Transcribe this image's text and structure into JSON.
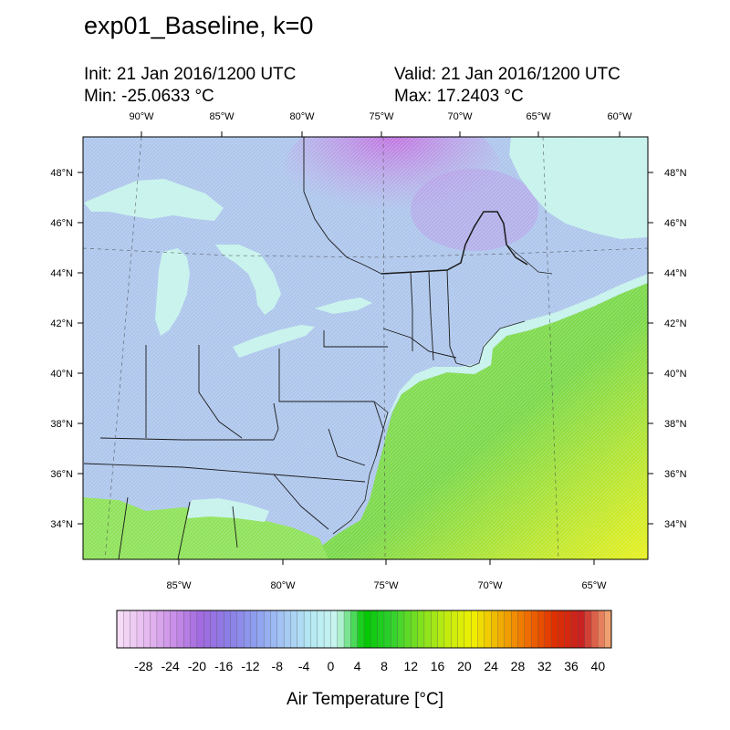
{
  "header": {
    "title": "exp01_Baseline, k=0",
    "init": "Init: 21 Jan 2016/1200 UTC",
    "valid": "Valid: 21 Jan 2016/1200 UTC",
    "min": "Min: -25.0633 °C",
    "max": "Max: 17.2403 °C"
  },
  "map": {
    "top_lon_labels": [
      "90°W",
      "85°W",
      "80°W",
      "75°W",
      "70°W",
      "65°W",
      "60°W"
    ],
    "bottom_lon_labels": [
      "85°W",
      "80°W",
      "75°W",
      "70°W",
      "65°W"
    ],
    "lat_labels": [
      "48°N",
      "46°N",
      "44°N",
      "42°N",
      "40°N",
      "38°N",
      "36°N",
      "34°N"
    ],
    "land_color": "#aec6ec",
    "cold_color": "#c89ae6",
    "water_color": "#c6f2ec",
    "warm_color": "#8fe25a",
    "hot_color": "#e8f01e",
    "border_color": "#000000"
  },
  "colorbar": {
    "title": "Air Temperature [°C]",
    "tick_labels": [
      "-28",
      "-24",
      "-20",
      "-16",
      "-12",
      "-8",
      "-4",
      "0",
      "4",
      "8",
      "12",
      "16",
      "20",
      "24",
      "28",
      "32",
      "36",
      "40"
    ],
    "range": [
      -32,
      42
    ],
    "colors": [
      "#f6dcf6",
      "#e6b9f0",
      "#c98ee8",
      "#a06ae0",
      "#8c7ee6",
      "#8f9ff0",
      "#a4c6f4",
      "#b5e8f4",
      "#c8f6ee",
      "#00c800",
      "#30d030",
      "#7ae020",
      "#c0ec10",
      "#f0f000",
      "#f0b000",
      "#f07000",
      "#e03000",
      "#c82020",
      "#f0a070"
    ]
  }
}
